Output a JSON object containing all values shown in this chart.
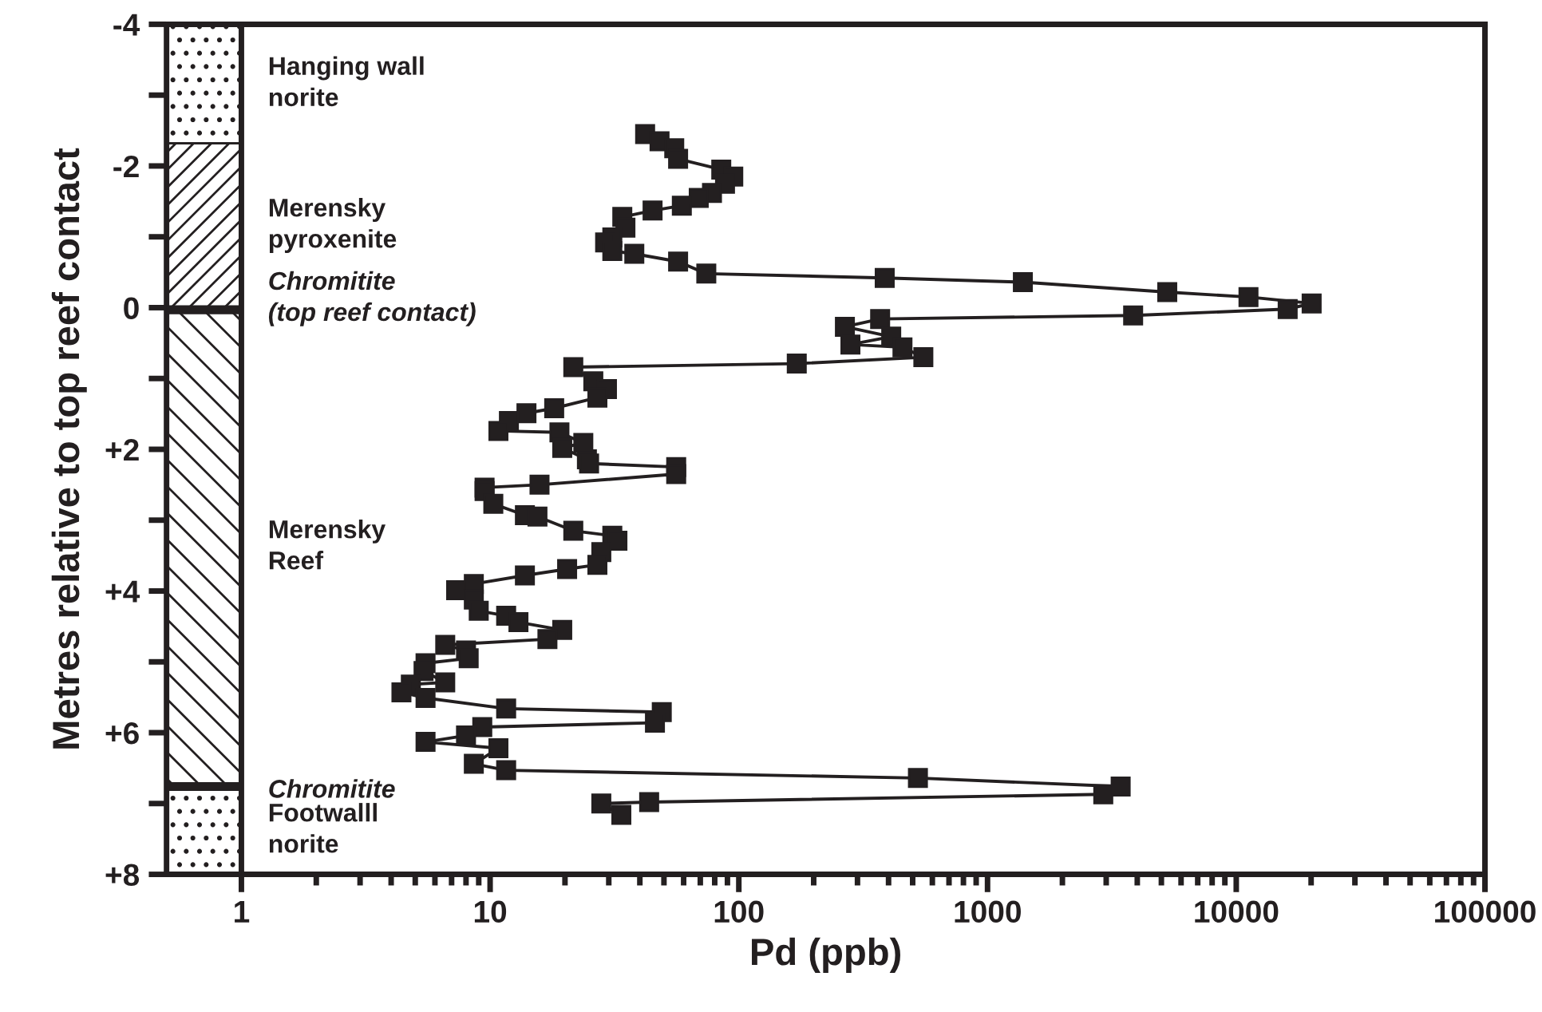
{
  "chart_data": {
    "type": "line",
    "xlabel": "Pd (ppb)",
    "ylabel": "Metres relative to top reef contact",
    "log": "x",
    "marker": "square",
    "line_style": "solid",
    "legend": false,
    "xlim": [
      0.5,
      100000
    ],
    "xticks": [
      1,
      10,
      100,
      1000,
      10000,
      100000
    ],
    "ylim": [
      8,
      -4
    ],
    "yticks": [
      -4,
      {
        "value": -3,
        "label": null
      },
      -2,
      {
        "value": -1,
        "label": null
      },
      0,
      {
        "value": 1,
        "label": null
      },
      {
        "value": 2,
        "label": "+2"
      },
      {
        "value": 3,
        "label": null
      },
      {
        "value": 4,
        "label": "+4"
      },
      {
        "value": 5,
        "label": null
      },
      {
        "value": 6,
        "label": "+6"
      },
      {
        "value": 7,
        "label": null
      },
      {
        "value": 8,
        "label": "+8"
      }
    ],
    "bands": [
      {
        "axis": "y",
        "from": -4,
        "to": -2.32,
        "label": "Hanging wall\nnorite"
      },
      {
        "axis": "y",
        "from": -2.32,
        "to": 0,
        "label": "Merensky\npyroxenite"
      },
      {
        "axis": "y",
        "from": 0,
        "to": 6.76,
        "label": "Merensky\nReef"
      },
      {
        "axis": "y",
        "from": 6.76,
        "to": 8,
        "label": "Footwalll\nnorite"
      }
    ],
    "ref_lines": [
      {
        "axis": "y",
        "value": 0.03,
        "label": "Chromitite\n(top reef contact)"
      },
      {
        "axis": "y",
        "value": 6.76,
        "label": "Chromitite"
      }
    ],
    "series": [
      {
        "color": "#231f20",
        "x": [
          42,
          48,
          55,
          57,
          85,
          95,
          88,
          78,
          69,
          59,
          45,
          34,
          35,
          31,
          29,
          31,
          38,
          57,
          74,
          386,
          1387,
          5280,
          11200,
          20100,
          16100,
          3850,
          370,
          267,
          410,
          281,
          455,
          552,
          171,
          21.6,
          26,
          29.5,
          27,
          18.1,
          14,
          11.9,
          10.8,
          19,
          23.7,
          19.5,
          24.5,
          25,
          56,
          56,
          15.8,
          9.5,
          9.5,
          10.3,
          13.8,
          15.5,
          21.6,
          31,
          32.5,
          28,
          27,
          20.4,
          13.8,
          8.6,
          7.3,
          8.6,
          9.0,
          11.6,
          13,
          19.5,
          17,
          6.6,
          8.0,
          8.2,
          5.5,
          5.4,
          6.6,
          4.8,
          4.4,
          5.5,
          11.6,
          49,
          46,
          9.3,
          8,
          5.5,
          10.8,
          8.6,
          11.6,
          525,
          3430,
          2920,
          43.6,
          28,
          33.7
        ],
        "values": [
          -2.45,
          -2.35,
          -2.25,
          -2.1,
          -1.95,
          -1.85,
          -1.75,
          -1.62,
          -1.55,
          -1.44,
          -1.37,
          -1.28,
          -1.13,
          -0.99,
          -0.92,
          -0.8,
          -0.76,
          -0.65,
          -0.48,
          -0.42,
          -0.36,
          -0.22,
          -0.15,
          -0.06,
          0.02,
          0.11,
          0.16,
          0.27,
          0.41,
          0.52,
          0.56,
          0.7,
          0.79,
          0.84,
          1.04,
          1.15,
          1.27,
          1.42,
          1.49,
          1.6,
          1.74,
          1.76,
          1.91,
          1.98,
          2.14,
          2.2,
          2.25,
          2.35,
          2.5,
          2.54,
          2.59,
          2.77,
          2.93,
          2.95,
          3.15,
          3.22,
          3.29,
          3.45,
          3.63,
          3.69,
          3.78,
          3.9,
          3.99,
          4.12,
          4.28,
          4.35,
          4.44,
          4.55,
          4.68,
          4.76,
          4.84,
          4.95,
          5.02,
          5.13,
          5.29,
          5.32,
          5.43,
          5.51,
          5.66,
          5.71,
          5.86,
          5.92,
          6.04,
          6.13,
          6.22,
          6.44,
          6.53,
          6.64,
          6.76,
          6.87,
          6.98,
          7.0,
          7.16
        ]
      }
    ]
  }
}
